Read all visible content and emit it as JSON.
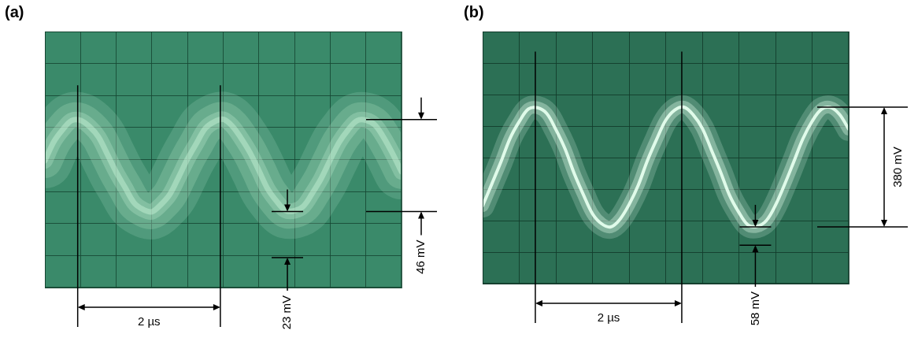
{
  "chart_data": [
    {
      "type": "line",
      "title": "(a)",
      "x": [
        0,
        0.125,
        0.25,
        0.375,
        0.5,
        0.625,
        0.75,
        0.875,
        1,
        1.125,
        1.25,
        1.375,
        1.5,
        1.625,
        1.75,
        1.875,
        2,
        2.125,
        2.25,
        2.375,
        2.5,
        2.625,
        2.75,
        2.875,
        3,
        3.125,
        3.25,
        3.375,
        3.5,
        3.625,
        3.75,
        3.875,
        4,
        4.125,
        4.25,
        4.375,
        4.5,
        4.625,
        4.75,
        4.875,
        5
      ],
      "values": [
        -0.6,
        8.9,
        15.0,
        19.5,
        19.6,
        16.5,
        11.4,
        2.7,
        -6.3,
        -14.0,
        -21.6,
        -24.9,
        -26.1,
        -22.6,
        -17.5,
        -8.8,
        0.3,
        8.1,
        15.6,
        18.9,
        20.1,
        16.8,
        10.7,
        3.5,
        -5.5,
        -14.8,
        -20.9,
        -25.5,
        -25.6,
        -23.3,
        -16.8,
        -9.4,
        -0.2,
        8.6,
        14.8,
        19.4,
        19.7,
        17.3,
        11.0,
        2.9,
        -6.1
      ],
      "color": "#c9f5d8",
      "xlim": [
        0,
        5
      ],
      "xticks": [
        0,
        0.5,
        1,
        1.5,
        2,
        2.5,
        3,
        3.5,
        4,
        4.5,
        5
      ],
      "ylim": [
        -64,
        64
      ],
      "yticks": [
        -64,
        -48,
        -32,
        -16,
        0,
        16,
        32,
        48,
        64
      ],
      "grid": true,
      "tick_labels": false,
      "annotations": [
        {
          "text": "2 µs",
          "x": [
            0.46,
            2.46
          ]
        },
        {
          "text": "46 mV",
          "y": [
            20,
            -26
          ]
        },
        {
          "text": "23 mV",
          "y": [
            -26,
            -49
          ]
        }
      ]
    },
    {
      "type": "line",
      "title": "(b)",
      "x": [
        0,
        0.125,
        0.25,
        0.375,
        0.5,
        0.625,
        0.75,
        0.875,
        1,
        1.125,
        1.25,
        1.375,
        1.5,
        1.625,
        1.75,
        1.875,
        2,
        2.125,
        2.25,
        2.375,
        2.5,
        2.625,
        2.75,
        2.875,
        3,
        3.125,
        3.25,
        3.375,
        3.5,
        3.625,
        3.75,
        3.875,
        4,
        4.125,
        4.25,
        4.375,
        4.5,
        4.625,
        4.75,
        4.875,
        5
      ],
      "values": [
        -153,
        -84,
        -14,
        61,
        114,
        154,
        158,
        140,
        89,
        28,
        -50,
        -117,
        -178,
        -210,
        -220,
        -196,
        -149,
        -88,
        -10,
        57,
        118,
        151,
        160,
        136,
        93,
        24,
        -46,
        -121,
        -174,
        -214,
        -218,
        -200,
        -151,
        -85,
        -13,
        60,
        115,
        153,
        159,
        137,
        90
      ],
      "color": "#e6ffee",
      "xlim": [
        0,
        5
      ],
      "xticks": [
        0,
        0.5,
        1,
        1.5,
        2,
        2.5,
        3,
        3.5,
        4,
        4.5,
        5
      ],
      "ylim": [
        -400,
        400
      ],
      "yticks": [
        -400,
        -300,
        -200,
        -100,
        0,
        100,
        200,
        300,
        400
      ],
      "grid": true,
      "tick_labels": false,
      "annotations": [
        {
          "text": "2 µs",
          "x": [
            0.72,
            2.72
          ]
        },
        {
          "text": "380 mV",
          "y": [
            160,
            -220
          ]
        },
        {
          "text": "58 mV",
          "y": [
            -220,
            -278
          ]
        }
      ]
    }
  ]
}
